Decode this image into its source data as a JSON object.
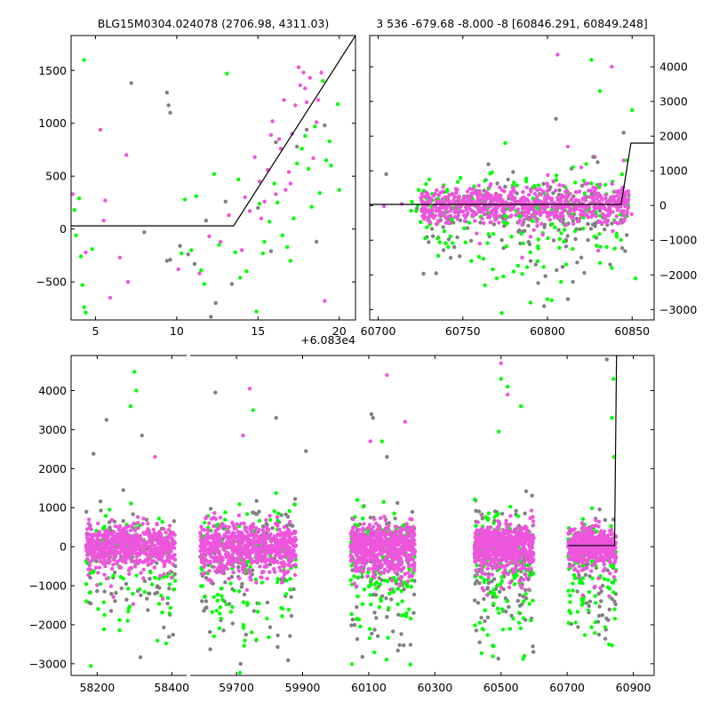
{
  "colors": {
    "green": "#00ff00",
    "magenta": "#ee55dd",
    "gray": "#808080",
    "model": "#000000",
    "axis": "#000000"
  },
  "chart_data": [
    {
      "name": "top-left-zoom",
      "type": "scatter",
      "title": "BLG15M0304.024078 (2706.98, 4311.03)",
      "x_offset_label": "+6.083e4",
      "xlim": [
        3.5,
        21
      ],
      "ylim": [
        -860,
        1830
      ],
      "xticks": [
        5,
        10,
        15,
        20
      ],
      "yticks": [
        -500,
        0,
        500,
        1000,
        1500
      ],
      "ytick_side": "left",
      "model": {
        "x": [
          3.5,
          13.5,
          21
        ],
        "y": [
          30,
          30,
          1830
        ]
      },
      "series": [
        {
          "name": "magenta",
          "color_key": "magenta",
          "points": [
            [
              3.6,
              330
            ],
            [
              4.4,
              -220
            ],
            [
              5.3,
              940
            ],
            [
              5.6,
              270
            ],
            [
              5.5,
              80
            ],
            [
              5.9,
              -650
            ],
            [
              6.5,
              -270
            ],
            [
              6.9,
              700
            ],
            [
              7.0,
              -500
            ],
            [
              10.1,
              -380
            ],
            [
              11.4,
              -420
            ],
            [
              12.0,
              -70
            ],
            [
              12.7,
              -120
            ],
            [
              13.2,
              130
            ],
            [
              14.0,
              -200
            ],
            [
              14.2,
              300
            ],
            [
              14.5,
              170
            ],
            [
              15.1,
              450
            ],
            [
              15.4,
              260
            ],
            [
              15.6,
              560
            ],
            [
              15.8,
              890
            ],
            [
              16.1,
              330
            ],
            [
              16.4,
              760
            ],
            [
              16.7,
              370
            ],
            [
              16.9,
              540
            ],
            [
              17.1,
              900
            ],
            [
              17.3,
              1170
            ],
            [
              17.5,
              1530
            ],
            [
              17.6,
              1360
            ],
            [
              17.8,
              1480
            ],
            [
              18.0,
              1200
            ],
            [
              18.2,
              1430
            ],
            [
              18.4,
              670
            ],
            [
              18.6,
              1010
            ],
            [
              18.9,
              1480
            ],
            [
              19.1,
              -680
            ],
            [
              16.3,
              850
            ],
            [
              15.9,
              1020
            ],
            [
              16.6,
              1220
            ],
            [
              17.9,
              1330
            ],
            [
              18.7,
              1220
            ],
            [
              14.8,
              680
            ],
            [
              15.2,
              100
            ],
            [
              17.0,
              430
            ]
          ]
        },
        {
          "name": "green",
          "color_key": "green",
          "points": [
            [
              3.7,
              180
            ],
            [
              3.8,
              -60
            ],
            [
              4.0,
              290
            ],
            [
              4.1,
              -260
            ],
            [
              4.2,
              -530
            ],
            [
              4.3,
              -740
            ],
            [
              4.4,
              -790
            ],
            [
              4.3,
              1600
            ],
            [
              4.8,
              -190
            ],
            [
              10.5,
              280
            ],
            [
              10.3,
              -230
            ],
            [
              11.2,
              310
            ],
            [
              11.5,
              -390
            ],
            [
              12.3,
              520
            ],
            [
              13.1,
              1470
            ],
            [
              13.6,
              -220
            ],
            [
              13.9,
              -460
            ],
            [
              14.3,
              -400
            ],
            [
              14.9,
              -780
            ],
            [
              15.1,
              240
            ],
            [
              15.3,
              -230
            ],
            [
              15.7,
              70
            ],
            [
              16.0,
              430
            ],
            [
              16.2,
              250
            ],
            [
              16.8,
              -170
            ],
            [
              17.2,
              100
            ],
            [
              17.4,
              620
            ],
            [
              17.7,
              760
            ],
            [
              18.1,
              570
            ],
            [
              18.3,
              210
            ],
            [
              18.5,
              970
            ],
            [
              18.8,
              340
            ],
            [
              19.0,
              1400
            ],
            [
              19.2,
              650
            ],
            [
              19.5,
              600
            ],
            [
              19.9,
              1180
            ],
            [
              20.0,
              370
            ],
            [
              17.9,
              880
            ],
            [
              16.5,
              -60
            ],
            [
              15.4,
              -120
            ],
            [
              13.8,
              470
            ],
            [
              10.9,
              -200
            ],
            [
              11.7,
              -520
            ],
            [
              12.6,
              -150
            ],
            [
              19.4,
              830
            ],
            [
              17.0,
              -300
            ]
          ]
        },
        {
          "name": "gray",
          "color_key": "gray",
          "points": [
            [
              7.2,
              1380
            ],
            [
              8.0,
              -30
            ],
            [
              9.4,
              1290
            ],
            [
              9.5,
              1170
            ],
            [
              9.6,
              1100
            ],
            [
              9.4,
              -300
            ],
            [
              9.6,
              -290
            ],
            [
              10.2,
              -160
            ],
            [
              10.7,
              -240
            ],
            [
              11.1,
              -330
            ],
            [
              12.1,
              -830
            ],
            [
              12.4,
              -700
            ],
            [
              13.4,
              -520
            ],
            [
              15.0,
              200
            ],
            [
              16.1,
              820
            ],
            [
              17.4,
              780
            ],
            [
              18.0,
              940
            ],
            [
              19.1,
              980
            ],
            [
              18.6,
              -120
            ],
            [
              15.8,
              -210
            ],
            [
              13.0,
              260
            ],
            [
              11.8,
              80
            ]
          ]
        }
      ]
    },
    {
      "name": "top-right",
      "type": "scatter",
      "title": "3 536 -679.68 -8.000 -8 [60846.291, 60849.248]",
      "xlim": [
        60695,
        60863
      ],
      "ylim": [
        -3300,
        4900
      ],
      "xticks": [
        60700,
        60750,
        60800,
        60850
      ],
      "yticks": [
        -3000,
        -2000,
        -1000,
        0,
        1000,
        2000,
        3000,
        4000
      ],
      "ytick_side": "right",
      "model": {
        "x": [
          60695,
          60843.5,
          60849.3,
          60863
        ],
        "y": [
          30,
          30,
          1800,
          1800
        ]
      },
      "cloud": {
        "x_range": [
          60703,
          60850
        ],
        "dense_x_range": [
          60725,
          60848
        ],
        "y_center": 0,
        "y_spread": 700,
        "counts": {
          "magenta": 700,
          "green": 230,
          "gray": 180
        }
      },
      "outliers": [
        {
          "color_key": "magenta",
          "points": [
            [
              60806,
              4350
            ],
            [
              60838,
              4000
            ],
            [
              60812,
              1700
            ],
            [
              60828,
              1400
            ],
            [
              60845,
              1300
            ],
            [
              60830,
              -1300
            ],
            [
              60760,
              -1100
            ],
            [
              60785,
              -1500
            ],
            [
              60820,
              1100
            ],
            [
              60790,
              -900
            ]
          ]
        },
        {
          "color_key": "green",
          "points": [
            [
              60826,
              4200
            ],
            [
              60831,
              3300
            ],
            [
              60775,
              1800
            ],
            [
              60800,
              -2700
            ],
            [
              60763,
              -2300
            ],
            [
              60773,
              -3100
            ],
            [
              60850,
              2750
            ],
            [
              60852,
              -2100
            ],
            [
              60808,
              -2200
            ],
            [
              60838,
              -1800
            ],
            [
              60755,
              -1600
            ],
            [
              60790,
              -2800
            ],
            [
              60815,
              1100
            ],
            [
              60844,
              900
            ],
            [
              60847,
              1300
            ],
            [
              60835,
              -1200
            ],
            [
              60770,
              -2100
            ],
            [
              60780,
              -1900
            ],
            [
              60811,
              -1700
            ]
          ]
        },
        {
          "color_key": "gray",
          "points": [
            [
              60805,
              2500
            ],
            [
              60845,
              2100
            ],
            [
              60827,
              1400
            ],
            [
              60812,
              -2700
            ],
            [
              60815,
              -2200
            ],
            [
              60798,
              -2900
            ],
            [
              60837,
              -1700
            ],
            [
              60745,
              -1200
            ],
            [
              60820,
              -1500
            ],
            [
              60790,
              -1600
            ],
            [
              60773,
              -1000
            ]
          ]
        }
      ]
    },
    {
      "name": "bottom-full",
      "type": "scatter",
      "title": "",
      "segments": [
        {
          "name": "segment-1",
          "xlim": [
            58130,
            58440
          ],
          "xticks": [
            58200,
            58400
          ]
        },
        {
          "name": "segment-2",
          "xlim": [
            59560,
            60963
          ],
          "xticks": [
            59700,
            59900,
            60100,
            60300,
            60500,
            60700,
            60900
          ]
        }
      ],
      "ylim": [
        -3300,
        4900
      ],
      "yticks": [
        -3000,
        -2000,
        -1000,
        0,
        1000,
        2000,
        3000,
        4000
      ],
      "ytick_side": "left",
      "model": {
        "x": [
          60703,
          60843.5,
          60849.3,
          60870
        ],
        "y": [
          30,
          30,
          4900,
          4900
        ]
      },
      "clusters": [
        {
          "x_range": [
            58170,
            58410
          ],
          "magenta": 600,
          "green": 110,
          "gray": 110,
          "spread": 900,
          "neg_tail": 2000
        },
        {
          "x_range": [
            59590,
            59880
          ],
          "magenta": 650,
          "green": 140,
          "gray": 130,
          "spread": 1100,
          "neg_tail": 2200
        },
        {
          "x_range": [
            60045,
            60240
          ],
          "magenta": 600,
          "green": 180,
          "gray": 130,
          "spread": 1000,
          "neg_tail": 2400
        },
        {
          "x_range": [
            60420,
            60600
          ],
          "magenta": 600,
          "green": 160,
          "gray": 130,
          "spread": 1000,
          "neg_tail": 2300
        },
        {
          "x_range": [
            60703,
            60848
          ],
          "magenta": 450,
          "green": 120,
          "gray": 90,
          "spread": 800,
          "neg_tail": 2000
        }
      ],
      "outliers": [
        {
          "color_key": "green",
          "points": [
            [
              58300,
              4480
            ],
            [
              58305,
              4000
            ],
            [
              58290,
              3600
            ],
            [
              59750,
              3500
            ],
            [
              60140,
              2700
            ],
            [
              60520,
              4100
            ],
            [
              60500,
              4300
            ],
            [
              60493,
              2950
            ],
            [
              60560,
              3600
            ],
            [
              60840,
              4300
            ],
            [
              60835,
              3300
            ],
            [
              60842,
              2300
            ]
          ]
        },
        {
          "color_key": "magenta",
          "points": [
            [
              59740,
              4050
            ],
            [
              60155,
              4400
            ],
            [
              60500,
              4700
            ],
            [
              60520,
              3900
            ],
            [
              59720,
              2850
            ],
            [
              58355,
              2300
            ],
            [
              60210,
              3200
            ],
            [
              60105,
              2700
            ]
          ]
        },
        {
          "color_key": "gray",
          "points": [
            [
              58225,
              3250
            ],
            [
              58320,
              2850
            ],
            [
              59636,
              3950
            ],
            [
              59820,
              3300
            ],
            [
              60108,
              3400
            ],
            [
              60113,
              3300
            ],
            [
              60820,
              4800
            ],
            [
              59910,
              2450
            ],
            [
              60155,
              2300
            ],
            [
              58190,
              2380
            ],
            [
              58270,
              1450
            ]
          ]
        }
      ]
    }
  ]
}
